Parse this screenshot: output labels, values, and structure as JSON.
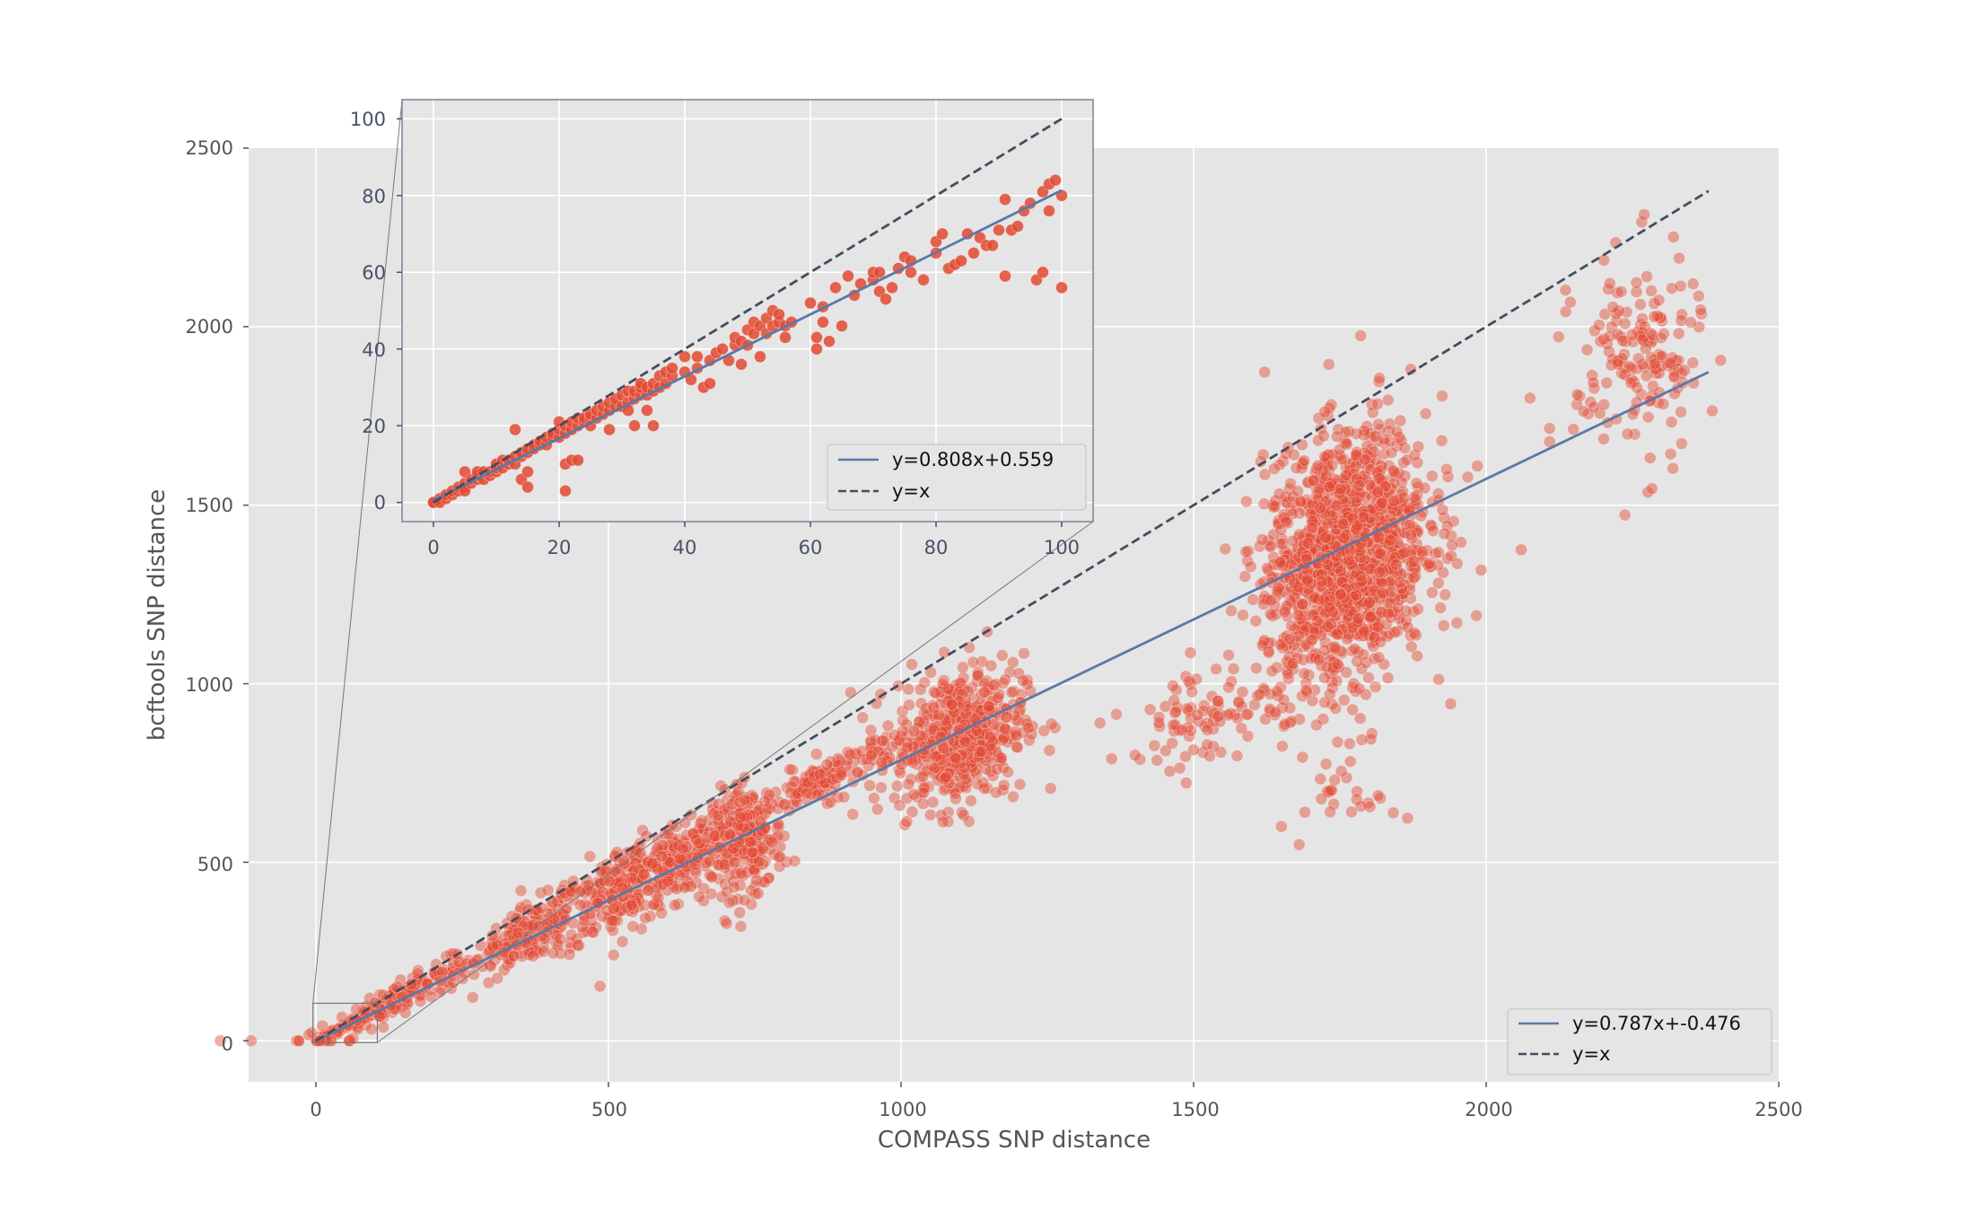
{
  "chart_data": [
    {
      "name": "main",
      "type": "scatter",
      "xlabel": "COMPASS SNP distance",
      "ylabel": "bcftools SNP distance",
      "xlim": [
        -115,
        2500
      ],
      "ylim": [
        -115,
        2500
      ],
      "xticks": [
        0,
        500,
        1000,
        1500,
        2000,
        2500
      ],
      "yticks": [
        0,
        500,
        1000,
        1500,
        2000,
        2500
      ],
      "grid": true,
      "point_color": "#e24a33",
      "series": [
        {
          "name": "y=0.787x+-0.476",
          "kind": "line",
          "style": "solid",
          "color": "#5a79a6",
          "slope": 0.787,
          "intercept": -0.476,
          "x_range": [
            0,
            2380
          ]
        },
        {
          "name": "y=x",
          "kind": "line",
          "style": "dashed",
          "color": "#444c5e",
          "slope": 1,
          "intercept": 0,
          "x_range": [
            0,
            2380
          ]
        }
      ],
      "clusters": [
        {
          "cx": 150,
          "cy": 125,
          "sx": 90,
          "sy": 22,
          "n": 180,
          "slope": 0.83
        },
        {
          "cx": 370,
          "cy": 305,
          "sx": 45,
          "sy": 40,
          "n": 160,
          "slope": 0.8
        },
        {
          "cx": 520,
          "cy": 420,
          "sx": 60,
          "sy": 60,
          "n": 260,
          "slope": 0.75
        },
        {
          "cx": 640,
          "cy": 520,
          "sx": 45,
          "sy": 55,
          "n": 180,
          "slope": 0.7
        },
        {
          "cx": 740,
          "cy": 560,
          "sx": 30,
          "sy": 75,
          "n": 200,
          "slope": 0.3
        },
        {
          "cx": 880,
          "cy": 740,
          "sx": 60,
          "sy": 30,
          "n": 140,
          "slope": 0.75
        },
        {
          "cx": 1100,
          "cy": 850,
          "sx": 55,
          "sy": 95,
          "n": 520,
          "slope": 0.4
        },
        {
          "cx": 1530,
          "cy": 920,
          "sx": 70,
          "sy": 70,
          "n": 90,
          "slope": 0.2
        },
        {
          "cx": 1760,
          "cy": 1350,
          "sx": 70,
          "sy": 170,
          "n": 1400,
          "slope": 0.6
        },
        {
          "cx": 1770,
          "cy": 710,
          "sx": 40,
          "sy": 60,
          "n": 25,
          "slope": 0
        },
        {
          "cx": 2260,
          "cy": 1900,
          "sx": 55,
          "sy": 150,
          "n": 170,
          "slope": 0.3
        }
      ],
      "points": [
        [
          1985,
          1610
        ],
        [
          2075,
          1800
        ],
        [
          1340,
          890
        ],
        [
          1400,
          800
        ],
        [
          1360,
          790
        ],
        [
          1950,
          1170
        ],
        [
          1690,
          640
        ],
        [
          1650,
          600
        ],
        [
          1480,
          870
        ],
        [
          1560,
          990
        ]
      ]
    },
    {
      "name": "inset",
      "type": "scatter",
      "xlim": [
        -5,
        105
      ],
      "ylim": [
        -5,
        105
      ],
      "xticks": [
        0,
        20,
        40,
        60,
        80,
        100
      ],
      "yticks": [
        0,
        20,
        40,
        60,
        80,
        100
      ],
      "grid": true,
      "point_color": "#e24a33",
      "series": [
        {
          "name": "y=0.808x+0.559",
          "kind": "line",
          "style": "solid",
          "color": "#5a79a6",
          "slope": 0.808,
          "intercept": 0.559,
          "x_range": [
            0,
            100
          ]
        },
        {
          "name": "y=x",
          "kind": "line",
          "style": "dashed",
          "color": "#444c5e",
          "slope": 1,
          "intercept": 0,
          "x_range": [
            0,
            100
          ]
        }
      ],
      "points": [
        [
          0,
          0
        ],
        [
          0,
          0
        ],
        [
          1,
          1
        ],
        [
          1,
          0
        ],
        [
          2,
          1
        ],
        [
          2,
          2
        ],
        [
          3,
          2
        ],
        [
          3,
          3
        ],
        [
          4,
          3
        ],
        [
          4,
          4
        ],
        [
          5,
          4
        ],
        [
          5,
          5
        ],
        [
          5,
          8
        ],
        [
          5,
          3
        ],
        [
          6,
          5
        ],
        [
          6,
          6
        ],
        [
          7,
          6
        ],
        [
          7,
          7
        ],
        [
          7,
          8
        ],
        [
          8,
          6
        ],
        [
          8,
          8
        ],
        [
          9,
          7
        ],
        [
          9,
          8
        ],
        [
          10,
          8
        ],
        [
          10,
          9
        ],
        [
          10,
          10
        ],
        [
          11,
          9
        ],
        [
          11,
          11
        ],
        [
          12,
          10
        ],
        [
          12,
          11
        ],
        [
          13,
          10
        ],
        [
          13,
          12
        ],
        [
          13,
          19
        ],
        [
          14,
          12
        ],
        [
          14,
          13
        ],
        [
          14,
          6
        ],
        [
          15,
          13
        ],
        [
          15,
          14
        ],
        [
          15,
          8
        ],
        [
          15,
          4
        ],
        [
          16,
          14
        ],
        [
          16,
          15
        ],
        [
          17,
          15
        ],
        [
          17,
          16
        ],
        [
          18,
          15
        ],
        [
          18,
          17
        ],
        [
          19,
          17
        ],
        [
          19,
          18
        ],
        [
          20,
          17
        ],
        [
          20,
          19
        ],
        [
          20,
          21
        ],
        [
          21,
          18
        ],
        [
          21,
          20
        ],
        [
          21,
          10
        ],
        [
          21,
          3
        ],
        [
          22,
          19
        ],
        [
          22,
          21
        ],
        [
          22,
          11
        ],
        [
          23,
          20
        ],
        [
          23,
          22
        ],
        [
          23,
          11
        ],
        [
          24,
          21
        ],
        [
          24,
          22
        ],
        [
          25,
          22
        ],
        [
          25,
          23
        ],
        [
          25,
          20
        ],
        [
          26,
          22
        ],
        [
          26,
          24
        ],
        [
          27,
          23
        ],
        [
          27,
          25
        ],
        [
          28,
          24
        ],
        [
          28,
          26
        ],
        [
          28,
          19
        ],
        [
          29,
          25
        ],
        [
          29,
          27
        ],
        [
          30,
          25
        ],
        [
          30,
          28
        ],
        [
          31,
          26
        ],
        [
          31,
          29
        ],
        [
          31,
          24
        ],
        [
          32,
          27
        ],
        [
          32,
          29
        ],
        [
          32,
          20
        ],
        [
          33,
          28
        ],
        [
          33,
          30
        ],
        [
          33,
          31
        ],
        [
          34,
          28
        ],
        [
          34,
          30
        ],
        [
          34,
          24
        ],
        [
          35,
          29
        ],
        [
          35,
          31
        ],
        [
          35,
          20
        ],
        [
          36,
          30
        ],
        [
          36,
          33
        ],
        [
          37,
          31
        ],
        [
          37,
          34
        ],
        [
          38,
          33
        ],
        [
          38,
          35
        ],
        [
          40,
          34
        ],
        [
          40,
          38
        ],
        [
          41,
          32
        ],
        [
          42,
          35
        ],
        [
          42,
          38
        ],
        [
          43,
          30
        ],
        [
          44,
          31
        ],
        [
          44,
          37
        ],
        [
          45,
          39
        ],
        [
          46,
          40
        ],
        [
          47,
          37
        ],
        [
          48,
          41
        ],
        [
          48,
          43
        ],
        [
          49,
          36
        ],
        [
          49,
          42
        ],
        [
          50,
          41
        ],
        [
          50,
          45
        ],
        [
          51,
          44
        ],
        [
          51,
          47
        ],
        [
          52,
          46
        ],
        [
          52,
          38
        ],
        [
          53,
          44
        ],
        [
          53,
          48
        ],
        [
          54,
          46
        ],
        [
          54,
          50
        ],
        [
          55,
          47
        ],
        [
          55,
          49
        ],
        [
          56,
          43
        ],
        [
          56,
          46
        ],
        [
          57,
          47
        ],
        [
          60,
          52
        ],
        [
          61,
          40
        ],
        [
          61,
          43
        ],
        [
          62,
          47
        ],
        [
          62,
          51
        ],
        [
          63,
          42
        ],
        [
          64,
          56
        ],
        [
          65,
          46
        ],
        [
          66,
          59
        ],
        [
          67,
          54
        ],
        [
          68,
          57
        ],
        [
          70,
          58
        ],
        [
          70,
          60
        ],
        [
          71,
          55
        ],
        [
          71,
          60
        ],
        [
          72,
          53
        ],
        [
          73,
          56
        ],
        [
          74,
          61
        ],
        [
          75,
          64
        ],
        [
          76,
          63
        ],
        [
          76,
          60
        ],
        [
          78,
          58
        ],
        [
          80,
          65
        ],
        [
          80,
          68
        ],
        [
          81,
          70
        ],
        [
          82,
          61
        ],
        [
          83,
          62
        ],
        [
          84,
          63
        ],
        [
          85,
          70
        ],
        [
          86,
          65
        ],
        [
          87,
          69
        ],
        [
          88,
          67
        ],
        [
          89,
          67
        ],
        [
          90,
          71
        ],
        [
          91,
          59
        ],
        [
          91,
          79
        ],
        [
          92,
          71
        ],
        [
          93,
          72
        ],
        [
          94,
          76
        ],
        [
          95,
          78
        ],
        [
          96,
          58
        ],
        [
          97,
          60
        ],
        [
          97,
          81
        ],
        [
          98,
          76
        ],
        [
          98,
          83
        ],
        [
          99,
          84
        ],
        [
          100,
          80
        ],
        [
          100,
          56
        ]
      ],
      "legend": [
        "y=0.808x+0.559",
        "y=x"
      ]
    }
  ],
  "main_axes": {
    "xlabel": "COMPASS SNP distance",
    "ylabel": "bcftools SNP distance",
    "xtick_labels": [
      "0",
      "500",
      "1000",
      "1500",
      "2000",
      "2500"
    ],
    "ytick_labels": [
      "0",
      "500",
      "1000",
      "1500",
      "2000",
      "2500"
    ],
    "legend": [
      "y=0.787x+-0.476",
      "y=x"
    ]
  },
  "inset_axes": {
    "xtick_labels": [
      "0",
      "20",
      "40",
      "60",
      "80",
      "100"
    ],
    "ytick_labels": [
      "0",
      "20",
      "40",
      "60",
      "80",
      "100"
    ],
    "legend": [
      "y=0.808x+0.559",
      "y=x"
    ]
  }
}
